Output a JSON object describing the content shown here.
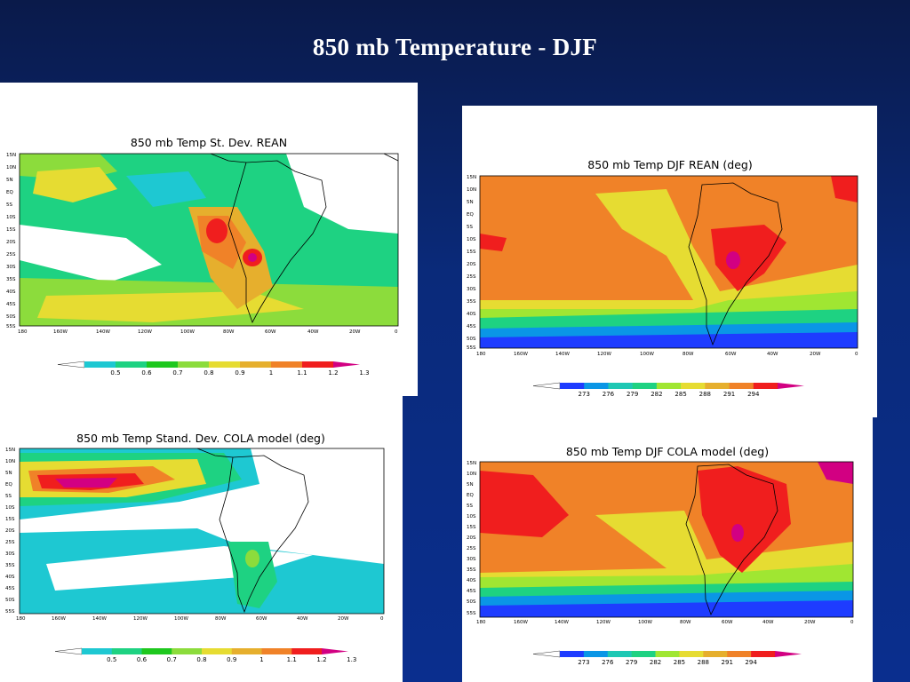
{
  "slide": {
    "title": "850 mb Temperature - DJF"
  },
  "axes": {
    "lat_ticks": [
      "15N",
      "10N",
      "5N",
      "EQ",
      "5S",
      "10S",
      "15S",
      "20S",
      "25S",
      "30S",
      "35S",
      "40S",
      "45S",
      "50S",
      "55S"
    ],
    "lon_ticks": [
      "180",
      "160W",
      "140W",
      "120W",
      "100W",
      "80W",
      "60W",
      "40W",
      "20W",
      "0"
    ]
  },
  "colors": {
    "std_levels": [
      "#ffffff",
      "#1ec8d2",
      "#1ed282",
      "#1ec81e",
      "#8cdc3c",
      "#e6dc32",
      "#e6af2d",
      "#f08228",
      "#f01e1e",
      "#d20082"
    ],
    "temp_levels": [
      "#ffffff",
      "#1e3cff",
      "#0a96e6",
      "#1ec8b4",
      "#1ed282",
      "#a0e632",
      "#e6dc32",
      "#e6af2d",
      "#f08228",
      "#f01e1e",
      "#d20082"
    ],
    "land": "#000000"
  },
  "panels": [
    {
      "id": "std-rean",
      "title": "850 mb Temp St. Dev. REAN",
      "colorbar": {
        "type": "std",
        "labels": [
          "0.5",
          "0.6",
          "0.7",
          "0.8",
          "0.9",
          "1",
          "1.1",
          "1.2",
          "1.3"
        ]
      }
    },
    {
      "id": "djf-rean",
      "title": "850 mb Temp DJF REAN (deg)",
      "colorbar": {
        "type": "temp",
        "labels": [
          "273",
          "276",
          "279",
          "282",
          "285",
          "288",
          "291",
          "294"
        ]
      }
    },
    {
      "id": "std-cola",
      "title": "850 mb Temp  Stand. Dev. COLA model (deg)",
      "colorbar": {
        "type": "std",
        "labels": [
          "0.5",
          "0.6",
          "0.7",
          "0.8",
          "0.9",
          "1",
          "1.1",
          "1.2",
          "1.3"
        ]
      }
    },
    {
      "id": "djf-cola",
      "title": "850 mb Temp  DJF COLA model (deg)",
      "colorbar": {
        "type": "temp",
        "labels": [
          "273",
          "276",
          "279",
          "282",
          "285",
          "288",
          "291",
          "294"
        ]
      }
    }
  ]
}
